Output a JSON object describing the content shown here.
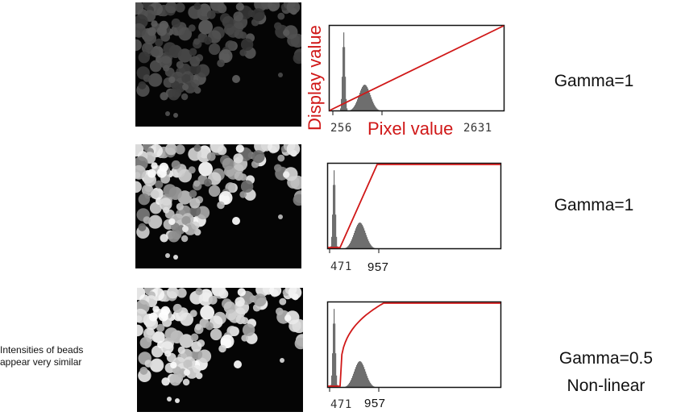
{
  "rows": [
    {
      "image_name": "beads-image-dim",
      "tick_labels": [
        "256",
        "2631"
      ],
      "gamma_label": "Gamma=1",
      "curve": "linear-full"
    },
    {
      "image_name": "beads-image-contrast",
      "tick_labels": [
        "471",
        "957"
      ],
      "gamma_label": "Gamma=1",
      "curve": "linear-clipped"
    },
    {
      "image_name": "beads-image-gamma",
      "tick_labels": [
        "471",
        "957"
      ],
      "gamma_label": "Gamma=0.5",
      "gamma_sub": "Non-linear",
      "curve": "gamma"
    }
  ],
  "axis_labels": {
    "y": "Display value",
    "x": "Pixel value"
  },
  "note": {
    "line1": "Intensities of beads",
    "line2": "appear very similar"
  },
  "colors": {
    "curve": "#d01818",
    "histogram": "#6e6e6e",
    "frame": "#111111"
  }
}
